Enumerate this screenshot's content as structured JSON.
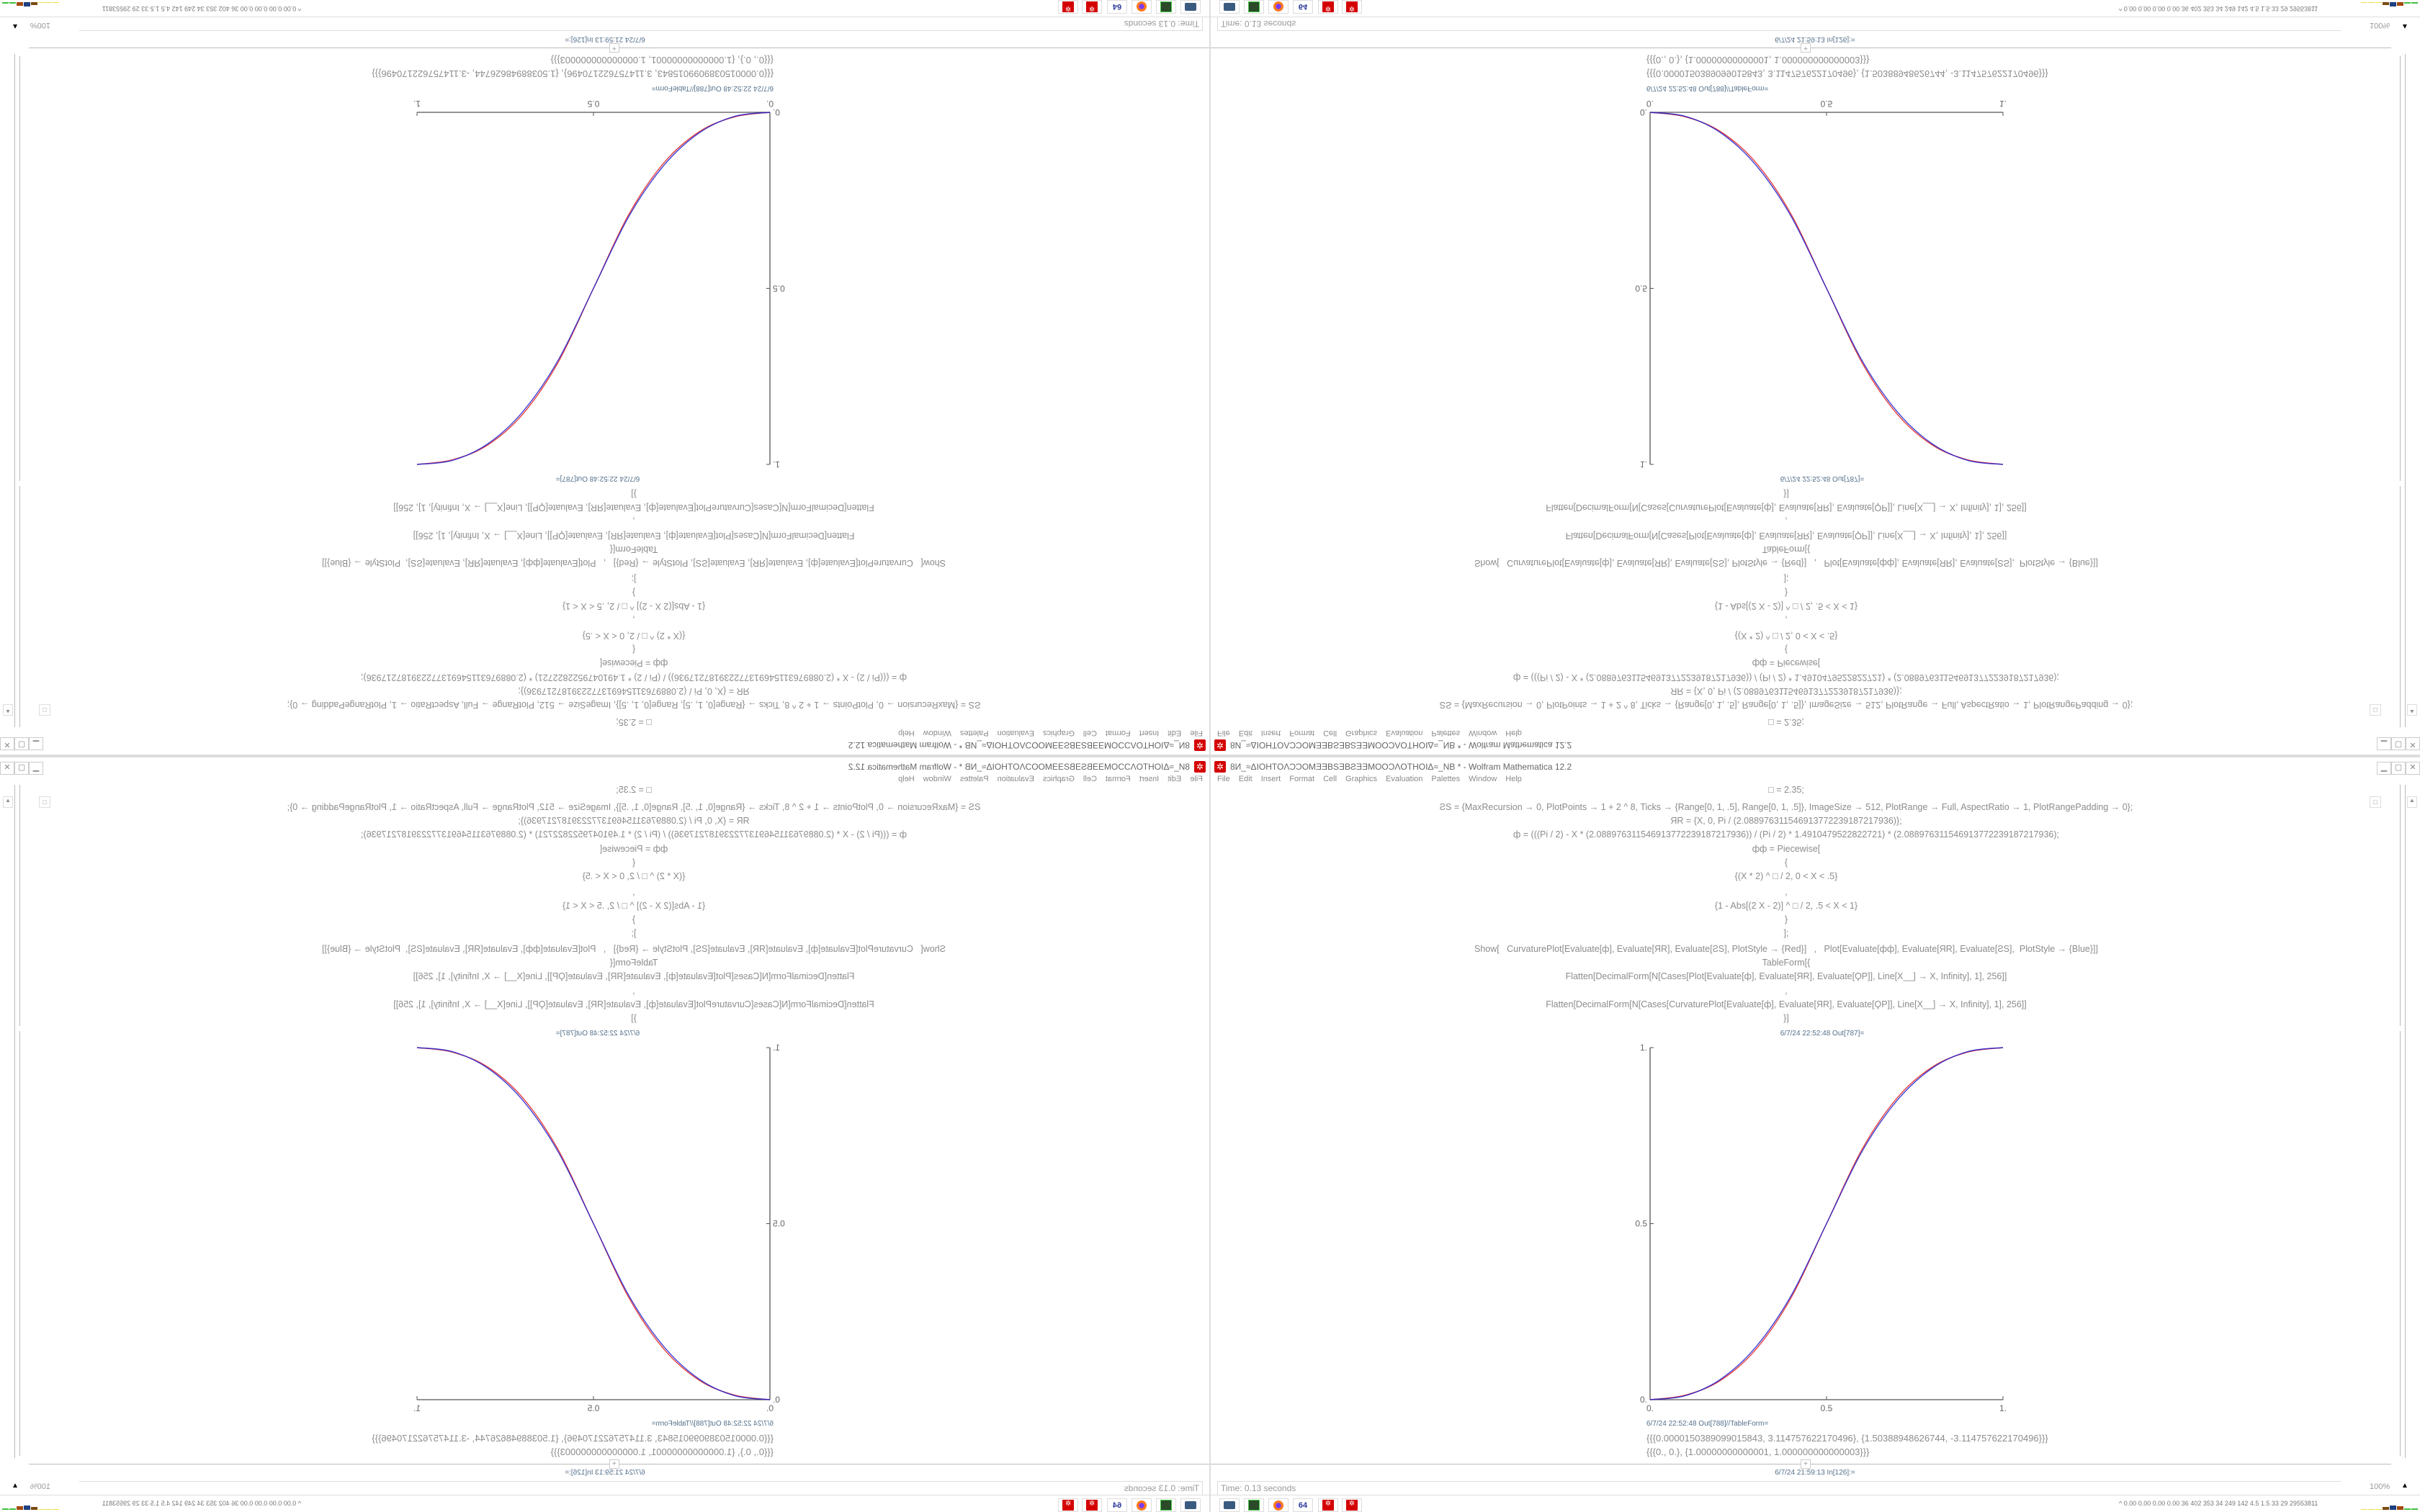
{
  "window": {
    "title": "8И_≈ΔIOHTOΛƆƆOMƎƎBSƎBƧƎƎMOOƆΛOTHOIΔ≈_NB * - Wolfram Mathematica 12.2",
    "controls": {
      "minimize": "▁",
      "maximize": "▢",
      "close": "✕"
    }
  },
  "menu": [
    "File",
    "Edit",
    "Insert",
    "Format",
    "Cell",
    "Graphics",
    "Evaluation",
    "Palettes",
    "Window",
    "Help"
  ],
  "notebook": {
    "input_lines": [
      "□ = 2.35;",
      "ƧS = {MaxRecursion → 0, PlotPoints → 1 + 2 ^ 8, Ticks → {Range[0, 1, .5], Range[0, 1, .5]}, ImageSize → 512, PlotRange → Full, AspectRatio → 1, PlotRangePadding → 0};",
      "ЯR = {X, 0, Pi / (2.08897631154691377223918721793​6)};",
      "ф = (((Pi / 2) - X * (2.088976311546913772239187217936)) / (Pi / 2) * 1.4910479522822721) * (2.088976311546913772239187217936);",
      "фф = Piecewise[",
      "{",
      "{(X * 2) ^ □ / 2, 0 < X < .5}",
      ",",
      "{1 - Abs[(2 X - 2)] ^ □ / 2, .5 < X < 1}",
      "}",
      "];",
      "Show[   CurvaturePlot[Evaluate[ф], Evaluate[ЯR], Evaluate[ƧS], PlotStyle → {Red}]   ,   Plot[Evaluate[фф], Evaluate[ЯR], Evaluate[ƧS],  PlotStyle → {Blue}]]",
      "TableForm[{",
      "Flatten[DecimalForm[N[Cases[Plot[Evaluate[ф], Evaluate[ЯR], Evaluate[ϘP]], Line[X__] → X, Infinity], 1], 256]]",
      ",",
      "Flatten[DecimalForm[N[Cases[CurvaturePlot[Evaluate[ф], Evaluate[ЯR], Evaluate[ϘP]], Line[X__] → X, Infinity], 1], 256]]",
      "}]"
    ],
    "out_plot_label": "6/7/24 22:52:48 Out[787]=",
    "out_table_label": "6/7/24 22:52:48 Out[788]//TableForm=",
    "out_table_rows": [
      "{{{0.0000150389099015843, 3.114757622170496}, {1.50388948626744, -3.114757622170496}}}",
      "{{{0., 0.}, {1.00000000000001, 1.000000000000003}}}"
    ],
    "next_input_label": "6/7/24 21:59:13 In[126]:=",
    "add_cell": "+"
  },
  "chart_data": {
    "type": "line",
    "title": "",
    "xlabel": "",
    "ylabel": "",
    "xlim": [
      0,
      1
    ],
    "ylim": [
      0,
      1
    ],
    "x_ticks": [
      "0.",
      "0.5",
      "1."
    ],
    "y_ticks": [
      "0.",
      "0.5",
      "1."
    ],
    "grid": false,
    "x": [
      0,
      0.1,
      0.2,
      0.3,
      0.4,
      0.5,
      0.6,
      0.7,
      0.8,
      0.9,
      1.0
    ],
    "series": [
      {
        "color": "#e02020",
        "values": [
          0,
          0.013,
          0.055,
          0.143,
          0.29,
          0.5,
          0.71,
          0.857,
          0.945,
          0.987,
          1
        ]
      },
      {
        "color": "#2020d0",
        "values": [
          0,
          0.0114,
          0.058,
          0.15,
          0.296,
          0.5,
          0.704,
          0.85,
          0.942,
          0.9886,
          1
        ]
      }
    ]
  },
  "status": {
    "time": "Time: 0.13 seconds",
    "zoom": "100%"
  },
  "taskbar": {
    "icons": [
      "monitor-icon",
      "drive-icon",
      "firefox-icon",
      "floppy-64-icon",
      "mathematica-icon",
      "mathematica-icon"
    ],
    "floppy_label": "64",
    "stats": "^ 0.00 0.00 0.00 0.00  36  402  353  34  249  142  4.5  1.5  33  29  29553811",
    "bar_colors": [
      "#f0e040",
      "#f0e040",
      "#f0e040",
      "#7a4a10",
      "#1f3f80",
      "#a04a10",
      "#40c040",
      "#40c040"
    ]
  }
}
